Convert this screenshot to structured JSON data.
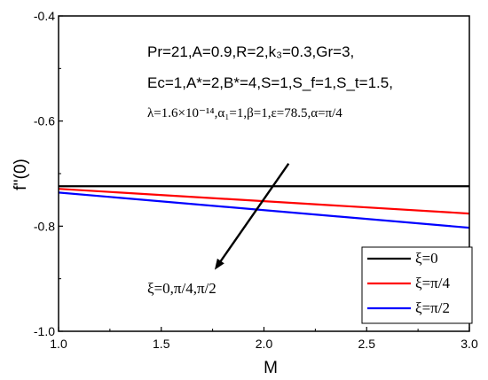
{
  "chart_data": {
    "type": "line",
    "xlabel": "M",
    "ylabel": "f''(0)",
    "xlim": [
      1.0,
      3.0
    ],
    "ylim": [
      -1.0,
      -0.4
    ],
    "x_ticks": [
      "1.0",
      "1.5",
      "2.0",
      "2.5",
      "3.0"
    ],
    "y_ticks": [
      "-1.0",
      "-0.8",
      "-0.6",
      "-0.4"
    ],
    "x_tick_values": [
      1.0,
      1.5,
      2.0,
      2.5,
      3.0
    ],
    "y_tick_values": [
      -1.0,
      -0.8,
      -0.6,
      -0.4
    ],
    "x": [
      1.0,
      3.0
    ],
    "series": [
      {
        "name": "ξ=0",
        "color": "#000000",
        "values": [
          -0.724,
          -0.724
        ]
      },
      {
        "name": "ξ=π/4",
        "color": "#ff0000",
        "values": [
          -0.729,
          -0.776
        ]
      },
      {
        "name": "ξ=π/2",
        "color": "#0000ff",
        "values": [
          -0.736,
          -0.803
        ]
      }
    ],
    "legend_position": "bottom-right",
    "grid": false,
    "annotations": {
      "line1": "Pr=21,A=0.9,R=2,k₃=0.3,Gr=3,",
      "line2": "Ec=1,A*=2,B*=4,S=1,S_f=1,S_t=1.5,",
      "line3": "λ=1.6×10⁻¹⁴,α₁=1,β=1,ε=78.5,α=π/4",
      "arrow_label": "ξ=0,π/4,π/2"
    },
    "arrow": {
      "from": [
        2.12,
        -0.681
      ],
      "to": [
        1.76,
        -0.883
      ]
    }
  }
}
